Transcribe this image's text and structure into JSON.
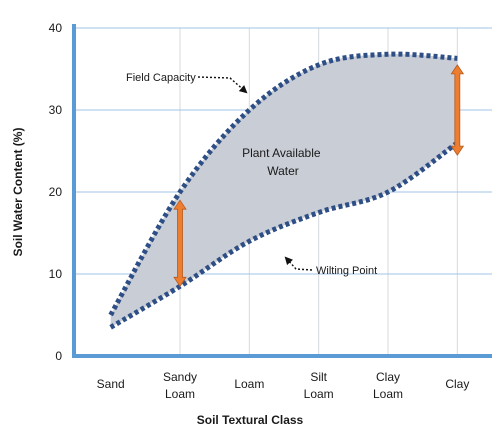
{
  "chart_data": {
    "type": "area",
    "categories": [
      "Sand",
      "Sandy Loam",
      "Loam",
      "Silt Loam",
      "Clay Loam",
      "Clay"
    ],
    "category_lines": [
      [
        "Sand"
      ],
      [
        "Sandy",
        "Loam"
      ],
      [
        "Loam"
      ],
      [
        "Silt",
        "Loam"
      ],
      [
        "Clay",
        "Loam"
      ],
      [
        "Clay"
      ]
    ],
    "series": [
      {
        "name": "Field Capacity",
        "values": [
          5,
          20,
          30,
          35.5,
          36.8,
          36.3
        ]
      },
      {
        "name": "Wilting Point",
        "values": [
          3.5,
          8.5,
          14,
          17.5,
          20,
          26
        ]
      }
    ],
    "region_label": [
      "Plant Available",
      "Water"
    ],
    "annotations": [
      {
        "text": "Field Capacity",
        "points_to": "Field Capacity"
      },
      {
        "text": "Wilting Point",
        "points_to": "Wilting Point"
      }
    ],
    "range_arrows": [
      {
        "category": "Sandy Loam",
        "from": 8.5,
        "to": 19
      },
      {
        "category": "Clay",
        "from": 24.5,
        "to": 35.5
      }
    ],
    "xlabel": "Soil Textural Class",
    "ylabel": "Soil Water Content (%)",
    "ylim": [
      0,
      40
    ],
    "yticks": [
      0,
      10,
      20,
      30,
      40
    ],
    "grid": true,
    "colors": {
      "fill": "#c9cdd6",
      "curve": "#2e4f86",
      "grid": "#9fc3e6",
      "axis": "#5b9bd5",
      "arrow": "#ed7d31",
      "arrow_edge": "#b85a1a"
    }
  }
}
